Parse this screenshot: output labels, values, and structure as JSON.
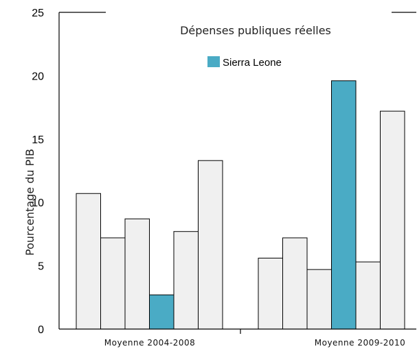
{
  "chart_data": {
    "type": "bar",
    "title": "Dépenses publiques réelles",
    "xlabel": "",
    "ylabel": "Pourcentage du PIB",
    "ylim": [
      0,
      25
    ],
    "y_tick_labels": [
      "0",
      "5",
      "10",
      "15",
      "20",
      "25"
    ],
    "categories": [
      "Moyenne  2004-2008",
      "Moyenne  2009-2010"
    ],
    "legend": {
      "entries": [
        "Sierra Leone"
      ],
      "placement": "top-center"
    },
    "grid": false,
    "colors": {
      "highlight": "#4aabc5",
      "other": "#f0f0f0",
      "edge": "#000000"
    },
    "groups": [
      {
        "category": "Moyenne  2004-2008",
        "values": [
          10.7,
          7.2,
          8.7,
          2.7,
          7.7,
          13.3
        ],
        "highlight": [
          false,
          false,
          false,
          true,
          false,
          false
        ]
      },
      {
        "category": "Moyenne  2009-2010",
        "values": [
          5.6,
          7.2,
          4.7,
          19.6,
          5.3,
          17.2
        ],
        "highlight": [
          false,
          false,
          false,
          true,
          false,
          false
        ]
      }
    ]
  }
}
